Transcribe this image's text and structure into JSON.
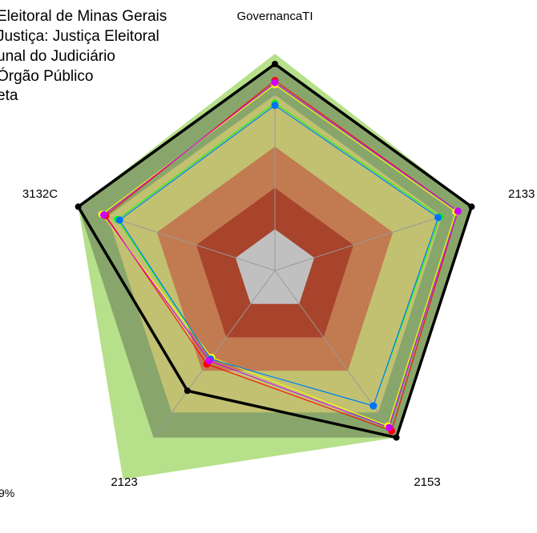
{
  "chart_data": {
    "type": "radar",
    "axes": [
      "GovernancaTI",
      "2133",
      "2153",
      "2123",
      "3132C"
    ],
    "rmax": 1.0,
    "legend": [
      "Eleitoral de Minas Gerais",
      "Justiça: Justiça Eleitoral",
      "unal do Judiciário",
      "Órgão Público",
      "eta"
    ],
    "percent_label": "9%",
    "bands": [
      {
        "from": 0.0,
        "to": 0.2,
        "color": "#c0c0c0"
      },
      {
        "from": 0.2,
        "to": 0.4,
        "color": "#a8432c"
      },
      {
        "from": 0.4,
        "to": 0.6,
        "color": "#c27a50"
      },
      {
        "from": 0.6,
        "to": 0.85,
        "color": "#c1c171"
      },
      {
        "from": 0.85,
        "to": 1.0,
        "color": "#88a66b"
      }
    ],
    "outer_shape": {
      "color": "#b6e08a",
      "values": [
        1.05,
        1.0,
        1.0,
        1.25,
        1.0
      ]
    },
    "reference": {
      "name": "meta",
      "color": "#000000",
      "values": [
        1.0,
        1.0,
        1.0,
        0.72,
        1.0
      ]
    },
    "series": [
      {
        "color": "#ff0000",
        "values": [
          0.92,
          0.93,
          0.96,
          0.56,
          0.86
        ]
      },
      {
        "color": "#ffff00",
        "values": [
          0.9,
          0.92,
          0.93,
          0.52,
          0.88
        ]
      },
      {
        "color": "#00ff00",
        "values": [
          0.81,
          0.84,
          0.81,
          0.53,
          0.8
        ]
      },
      {
        "color": "#00bfff",
        "values": [
          0.8,
          0.83,
          0.81,
          0.53,
          0.79
        ]
      },
      {
        "color": "#0070ff",
        "values": [
          0.8,
          0.83,
          0.81,
          0.53,
          0.79
        ]
      },
      {
        "color": "#cc00ff",
        "values": [
          0.91,
          0.93,
          0.94,
          0.54,
          0.87
        ]
      }
    ]
  }
}
